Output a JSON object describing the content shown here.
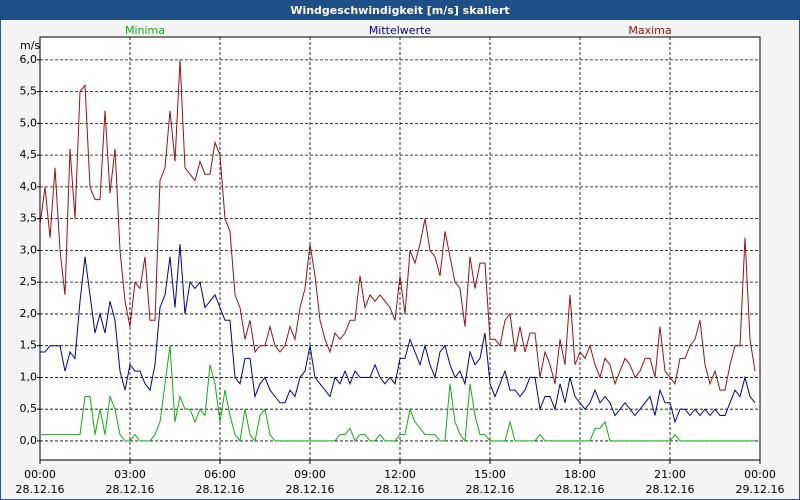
{
  "chart_data": {
    "type": "line",
    "title": "Windgeschwindigkeit [m/s] skaliert",
    "y_label": "m/s",
    "x": [
      0,
      10,
      20,
      30,
      40,
      50,
      60,
      70,
      80,
      90,
      100,
      110,
      120,
      130,
      140,
      150,
      160,
      170,
      180,
      190,
      200,
      210,
      220,
      230,
      240,
      250,
      260,
      270,
      280,
      290,
      300,
      310,
      320,
      330,
      340,
      350,
      360,
      370,
      380,
      390,
      400,
      410,
      420,
      430,
      440,
      450,
      460,
      470,
      480,
      490,
      500,
      510,
      520,
      530,
      540,
      550,
      560,
      570,
      580,
      590,
      600,
      610,
      620,
      630,
      640,
      650,
      660,
      670,
      680,
      690,
      700,
      710,
      720,
      730,
      740,
      750,
      760,
      770,
      780,
      790,
      800,
      810,
      820,
      830,
      840,
      850,
      860,
      870,
      880,
      890,
      900,
      910,
      920,
      930,
      940,
      950,
      960,
      970,
      980,
      990,
      1000,
      1010,
      1020,
      1030,
      1040,
      1050,
      1060,
      1070,
      1080,
      1090,
      1100,
      1110,
      1120,
      1130,
      1140,
      1150,
      1160,
      1170,
      1180,
      1190,
      1200,
      1210,
      1220,
      1230,
      1240,
      1250,
      1260,
      1270,
      1280,
      1290,
      1300,
      1310,
      1320,
      1330,
      1340,
      1350,
      1360,
      1370,
      1380,
      1390,
      1400,
      1410,
      1420,
      1430
    ],
    "series": [
      {
        "name": "Minima",
        "color": "#10b010",
        "values": [
          0.1,
          0.1,
          0.1,
          0.1,
          0.1,
          0.1,
          0.1,
          0.1,
          0.1,
          0.7,
          0.7,
          0.1,
          0.5,
          0.1,
          0.7,
          0.5,
          0.1,
          0,
          0,
          0.1,
          0,
          0,
          0,
          0.1,
          0.3,
          0.9,
          1.5,
          0.3,
          0.7,
          0.5,
          0.5,
          0.3,
          0.5,
          0.4,
          1.2,
          0.9,
          0.3,
          0.8,
          0.4,
          0.1,
          0,
          0.5,
          0.1,
          0,
          0.4,
          0.5,
          0.1,
          0,
          0,
          0,
          0,
          0,
          0,
          0,
          0,
          0,
          0,
          0,
          0,
          0,
          0.1,
          0.1,
          0.2,
          0,
          0.1,
          0.1,
          0,
          0,
          0.1,
          0,
          0,
          0,
          0.1,
          0.1,
          0.5,
          0.3,
          0.2,
          0.1,
          0.1,
          0.1,
          0,
          0,
          0.9,
          0.3,
          0.1,
          0,
          0.9,
          0.4,
          0.1,
          0.1,
          0,
          0,
          0,
          0,
          0.3,
          0,
          0,
          0,
          0,
          0,
          0.1,
          0,
          0,
          0,
          0,
          0,
          0,
          0,
          0,
          0,
          0,
          0.2,
          0.2,
          0.3,
          0,
          0,
          0,
          0,
          0,
          0,
          0,
          0,
          0,
          0,
          0,
          0,
          0,
          0.1,
          0,
          0,
          0,
          0,
          0,
          0,
          0,
          0,
          0,
          0,
          0,
          0,
          0,
          0,
          0,
          0
        ]
      },
      {
        "name": "Mittelwerte",
        "color": "#0000a0",
        "values": [
          1.4,
          1.4,
          1.5,
          1.5,
          1.5,
          1.1,
          1.4,
          1.3,
          2.2,
          2.9,
          2.3,
          1.7,
          2.0,
          1.7,
          2.2,
          1.9,
          1.1,
          0.8,
          1.2,
          1.1,
          1.1,
          0.9,
          0.8,
          1.2,
          2.1,
          2.3,
          2.9,
          2.1,
          3.1,
          2.0,
          2.5,
          2.4,
          2.5,
          2.1,
          2.2,
          2.3,
          2.1,
          1.9,
          1.9,
          1.0,
          0.9,
          1.3,
          1.3,
          0.7,
          0.9,
          1.0,
          0.8,
          0.7,
          0.6,
          0.6,
          0.8,
          0.7,
          1.0,
          1.1,
          1.5,
          1.0,
          0.9,
          0.8,
          0.7,
          1.0,
          0.9,
          1.1,
          0.9,
          1.1,
          1.0,
          1.0,
          1.0,
          1.2,
          1.0,
          0.9,
          1.0,
          0.9,
          1.3,
          1.3,
          1.6,
          1.4,
          1.2,
          1.5,
          1.2,
          1.0,
          1.4,
          1.5,
          1.2,
          1.0,
          1.1,
          0.9,
          1.4,
          1.2,
          1.3,
          1.7,
          0.9,
          0.7,
          0.9,
          1.1,
          0.8,
          0.8,
          0.7,
          0.8,
          1.0,
          1.0,
          0.5,
          0.7,
          0.7,
          0.5,
          0.9,
          0.6,
          1.0,
          0.7,
          0.6,
          0.5,
          0.6,
          0.8,
          0.6,
          0.7,
          0.6,
          0.4,
          0.5,
          0.6,
          0.5,
          0.4,
          0.5,
          0.6,
          0.7,
          0.4,
          0.8,
          0.6,
          0.6,
          0.3,
          0.5,
          0.5,
          0.4,
          0.5,
          0.4,
          0.5,
          0.4,
          0.5,
          0.4,
          0.4,
          0.6,
          0.8,
          0.7,
          1.0,
          0.7,
          0.6
        ]
      },
      {
        "name": "Maxima",
        "color": "#a01010",
        "values": [
          3.4,
          4.0,
          3.2,
          4.3,
          3.0,
          2.3,
          4.6,
          3.5,
          5.5,
          5.6,
          4.0,
          3.8,
          3.8,
          5.2,
          3.9,
          4.6,
          3.0,
          2.2,
          1.8,
          2.5,
          2.4,
          2.9,
          1.9,
          1.9,
          4.1,
          4.3,
          5.2,
          4.4,
          6.0,
          4.3,
          4.2,
          4.1,
          4.4,
          4.2,
          4.2,
          4.7,
          4.5,
          3.5,
          3.3,
          2.3,
          2.1,
          1.6,
          1.9,
          1.4,
          1.5,
          1.5,
          1.8,
          1.5,
          1.4,
          1.5,
          1.8,
          1.6,
          2.1,
          2.4,
          3.1,
          2.6,
          1.9,
          1.6,
          1.4,
          1.7,
          1.6,
          1.7,
          1.9,
          1.9,
          2.6,
          2.1,
          2.3,
          2.2,
          2.3,
          2.2,
          2.1,
          1.9,
          2.6,
          2.0,
          3.0,
          2.8,
          3.1,
          3.5,
          3.0,
          2.9,
          2.6,
          3.3,
          2.9,
          2.5,
          2.4,
          1.8,
          2.9,
          2.4,
          2.8,
          2.8,
          1.6,
          1.6,
          1.5,
          1.9,
          2.0,
          1.4,
          1.8,
          1.4,
          1.7,
          1.7,
          1.0,
          1.4,
          1.2,
          0.9,
          1.6,
          1.2,
          2.3,
          1.2,
          1.4,
          1.3,
          1.5,
          1.2,
          1.0,
          1.3,
          1.2,
          0.9,
          1.1,
          1.3,
          1.2,
          1.0,
          1.1,
          1.3,
          1.3,
          1.0,
          1.8,
          1.1,
          1.0,
          0.9,
          1.3,
          1.3,
          1.5,
          1.6,
          1.9,
          1.2,
          0.9,
          1.1,
          0.8,
          0.8,
          1.2,
          1.5,
          1.5,
          3.2,
          1.6,
          1.1
        ]
      }
    ],
    "xlim": [
      0,
      1440
    ],
    "xticks": [
      {
        "value": 0,
        "label": "00:00",
        "date": "28.12.16"
      },
      {
        "value": 180,
        "label": "03:00",
        "date": "28.12.16"
      },
      {
        "value": 360,
        "label": "06:00",
        "date": "28.12.16"
      },
      {
        "value": 540,
        "label": "09:00",
        "date": "28.12.16"
      },
      {
        "value": 720,
        "label": "12:00",
        "date": "28.12.16"
      },
      {
        "value": 900,
        "label": "15:00",
        "date": "28.12.16"
      },
      {
        "value": 1080,
        "label": "18:00",
        "date": "28.12.16"
      },
      {
        "value": 1260,
        "label": "21:00",
        "date": "28.12.16"
      },
      {
        "value": 1440,
        "label": "00:00",
        "date": "29.12.16"
      }
    ],
    "ylim": [
      -0.3,
      6.36
    ],
    "yticks": [
      {
        "value": 0,
        "label": "0,0"
      },
      {
        "value": 0.5,
        "label": "0,5"
      },
      {
        "value": 1,
        "label": "1,0"
      },
      {
        "value": 1.5,
        "label": "1,5"
      },
      {
        "value": 2,
        "label": "2,0"
      },
      {
        "value": 2.5,
        "label": "2,5"
      },
      {
        "value": 3,
        "label": "3,0"
      },
      {
        "value": 3.5,
        "label": "3,5"
      },
      {
        "value": 4,
        "label": "4,0"
      },
      {
        "value": 4.5,
        "label": "4,5"
      },
      {
        "value": 5,
        "label": "5,0"
      },
      {
        "value": 5.5,
        "label": "5,5"
      },
      {
        "value": 6,
        "label": "6,0"
      }
    ],
    "grid": true
  }
}
